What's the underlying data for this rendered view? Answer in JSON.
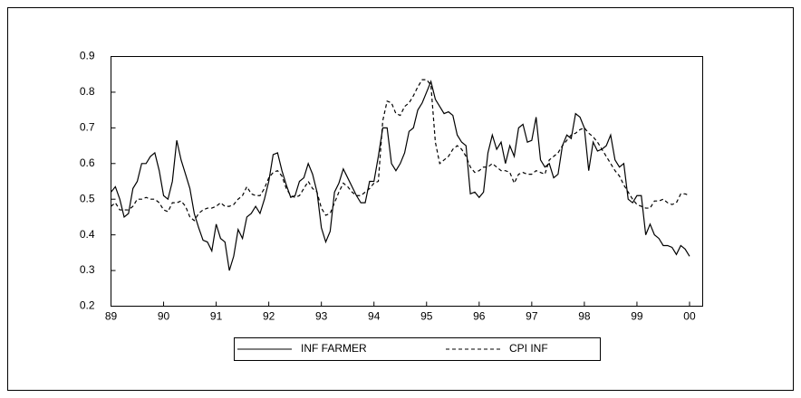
{
  "chart_data": {
    "type": "line",
    "x": [
      1989,
      1989.083,
      1989.167,
      1989.25,
      1989.333,
      1989.417,
      1989.5,
      1989.583,
      1989.667,
      1989.75,
      1989.833,
      1989.917,
      1990,
      1990.083,
      1990.167,
      1990.25,
      1990.333,
      1990.417,
      1990.5,
      1990.583,
      1990.667,
      1990.75,
      1990.833,
      1990.917,
      1991,
      1991.083,
      1991.167,
      1991.25,
      1991.333,
      1991.417,
      1991.5,
      1991.583,
      1991.667,
      1991.75,
      1991.833,
      1991.917,
      1992,
      1992.083,
      1992.167,
      1992.25,
      1992.333,
      1992.417,
      1992.5,
      1992.583,
      1992.667,
      1992.75,
      1992.833,
      1992.917,
      1993,
      1993.083,
      1993.167,
      1993.25,
      1993.333,
      1993.417,
      1993.5,
      1993.583,
      1993.667,
      1993.75,
      1993.833,
      1993.917,
      1994,
      1994.083,
      1994.167,
      1994.25,
      1994.333,
      1994.417,
      1994.5,
      1994.583,
      1994.667,
      1994.75,
      1994.833,
      1994.917,
      1995,
      1995.083,
      1995.167,
      1995.25,
      1995.333,
      1995.417,
      1995.5,
      1995.583,
      1995.667,
      1995.75,
      1995.833,
      1995.917,
      1996,
      1996.083,
      1996.167,
      1996.25,
      1996.333,
      1996.417,
      1996.5,
      1996.583,
      1996.667,
      1996.75,
      1996.833,
      1996.917,
      1997,
      1997.083,
      1997.167,
      1997.25,
      1997.333,
      1997.417,
      1997.5,
      1997.583,
      1997.667,
      1997.75,
      1997.833,
      1997.917,
      1998,
      1998.083,
      1998.167,
      1998.25,
      1998.333,
      1998.417,
      1998.5,
      1998.583,
      1998.667,
      1998.75,
      1998.833,
      1998.917,
      1999,
      1999.083,
      1999.167,
      1999.25,
      1999.333,
      1999.417,
      1999.5,
      1999.583,
      1999.667,
      1999.75,
      1999.833,
      1999.917,
      2000
    ],
    "series": [
      {
        "name": "INF FARMER",
        "color": "#000000",
        "style": "solid",
        "values": [
          0.52,
          0.535,
          0.5,
          0.45,
          0.46,
          0.53,
          0.55,
          0.6,
          0.6,
          0.62,
          0.63,
          0.58,
          0.51,
          0.5,
          0.55,
          0.665,
          0.61,
          0.57,
          0.53,
          0.46,
          0.42,
          0.385,
          0.38,
          0.355,
          0.43,
          0.39,
          0.38,
          0.3,
          0.34,
          0.415,
          0.39,
          0.45,
          0.46,
          0.48,
          0.46,
          0.5,
          0.55,
          0.625,
          0.63,
          0.58,
          0.54,
          0.505,
          0.51,
          0.55,
          0.56,
          0.6,
          0.57,
          0.52,
          0.42,
          0.38,
          0.41,
          0.52,
          0.545,
          0.585,
          0.56,
          0.535,
          0.51,
          0.49,
          0.49,
          0.55,
          0.55,
          0.62,
          0.7,
          0.7,
          0.6,
          0.58,
          0.6,
          0.63,
          0.69,
          0.7,
          0.75,
          0.77,
          0.8,
          0.83,
          0.78,
          0.76,
          0.74,
          0.745,
          0.735,
          0.68,
          0.66,
          0.65,
          0.515,
          0.52,
          0.505,
          0.52,
          0.63,
          0.68,
          0.64,
          0.66,
          0.6,
          0.65,
          0.62,
          0.7,
          0.71,
          0.66,
          0.665,
          0.73,
          0.61,
          0.59,
          0.6,
          0.56,
          0.57,
          0.65,
          0.68,
          0.67,
          0.74,
          0.73,
          0.7,
          0.58,
          0.66,
          0.635,
          0.64,
          0.65,
          0.68,
          0.61,
          0.59,
          0.6,
          0.5,
          0.49,
          0.51,
          0.51,
          0.4,
          0.43,
          0.4,
          0.39,
          0.37,
          0.37,
          0.365,
          0.345,
          0.37,
          0.36,
          0.34
        ]
      },
      {
        "name": "CPI INF",
        "color": "#000000",
        "style": "dashed",
        "values": [
          0.48,
          0.49,
          0.47,
          0.47,
          0.47,
          0.48,
          0.5,
          0.5,
          0.505,
          0.5,
          0.5,
          0.49,
          0.47,
          0.465,
          0.49,
          0.49,
          0.495,
          0.48,
          0.45,
          0.44,
          0.46,
          0.47,
          0.475,
          0.475,
          0.48,
          0.49,
          0.48,
          0.48,
          0.485,
          0.5,
          0.51,
          0.535,
          0.515,
          0.51,
          0.51,
          0.53,
          0.56,
          0.575,
          0.58,
          0.565,
          0.53,
          0.51,
          0.505,
          0.51,
          0.53,
          0.55,
          0.53,
          0.52,
          0.475,
          0.455,
          0.46,
          0.49,
          0.52,
          0.545,
          0.535,
          0.52,
          0.51,
          0.51,
          0.52,
          0.53,
          0.545,
          0.55,
          0.72,
          0.775,
          0.77,
          0.74,
          0.735,
          0.76,
          0.77,
          0.79,
          0.815,
          0.835,
          0.835,
          0.82,
          0.66,
          0.6,
          0.61,
          0.62,
          0.64,
          0.65,
          0.64,
          0.62,
          0.59,
          0.575,
          0.58,
          0.59,
          0.59,
          0.6,
          0.59,
          0.58,
          0.58,
          0.575,
          0.545,
          0.57,
          0.575,
          0.57,
          0.57,
          0.58,
          0.575,
          0.57,
          0.61,
          0.62,
          0.63,
          0.65,
          0.665,
          0.68,
          0.685,
          0.695,
          0.7,
          0.685,
          0.675,
          0.66,
          0.64,
          0.62,
          0.6,
          0.58,
          0.565,
          0.54,
          0.52,
          0.5,
          0.485,
          0.48,
          0.475,
          0.475,
          0.495,
          0.495,
          0.5,
          0.49,
          0.485,
          0.49,
          0.515,
          0.515,
          0.51
        ]
      }
    ],
    "xlim": [
      1989,
      2000.25
    ],
    "xticks": [
      {
        "value": 1989,
        "label": "89"
      },
      {
        "value": 1990,
        "label": "90"
      },
      {
        "value": 1991,
        "label": "91"
      },
      {
        "value": 1992,
        "label": "92"
      },
      {
        "value": 1993,
        "label": "93"
      },
      {
        "value": 1994,
        "label": "94"
      },
      {
        "value": 1995,
        "label": "95"
      },
      {
        "value": 1996,
        "label": "96"
      },
      {
        "value": 1997,
        "label": "97"
      },
      {
        "value": 1998,
        "label": "98"
      },
      {
        "value": 1999,
        "label": "99"
      },
      {
        "value": 2000,
        "label": "00"
      }
    ],
    "ylim": [
      0.2,
      0.9
    ],
    "yticks": [
      0.2,
      0.3,
      0.4,
      0.5,
      0.6,
      0.7,
      0.8,
      0.9
    ],
    "grid": false,
    "legend": "bottom"
  }
}
